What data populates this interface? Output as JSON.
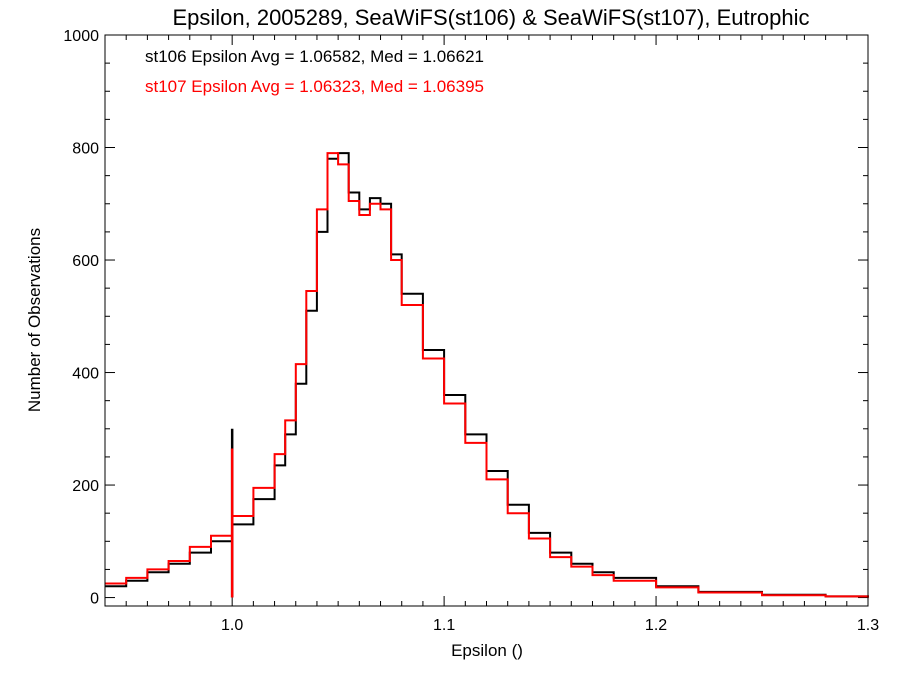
{
  "chart_data": {
    "type": "line",
    "title": "Epsilon, 2005289, SeaWiFS(st106) & SeaWiFS(st107), Eutrophic",
    "xlabel": "Epsilon ()",
    "ylabel": "Number of Observations",
    "xlim": [
      0.94,
      1.3
    ],
    "ylim": [
      -15,
      1000
    ],
    "x_ticks": [
      1.0,
      1.1,
      1.2,
      1.3
    ],
    "x_tick_labels": [
      "1.0",
      "1.1",
      "1.2",
      "1.3"
    ],
    "y_ticks": [
      0,
      200,
      400,
      600,
      800,
      1000
    ],
    "y_tick_labels": [
      "0",
      "200",
      "400",
      "600",
      "800",
      "1000"
    ],
    "x_minor_step": 0.01,
    "y_minor_step": 50,
    "grid": false,
    "step_plot": true,
    "annotations": [
      {
        "text": "st106 Epsilon Avg = 1.06582, Med = 1.06621",
        "color": "#000000"
      },
      {
        "text": "st107 Epsilon Avg = 1.06323, Med = 1.06395",
        "color": "#ff0000"
      }
    ],
    "x": [
      0.94,
      0.95,
      0.96,
      0.97,
      0.98,
      0.99,
      1.0,
      1.01,
      1.02,
      1.025,
      1.03,
      1.035,
      1.04,
      1.045,
      1.05,
      1.055,
      1.06,
      1.065,
      1.07,
      1.075,
      1.08,
      1.09,
      1.1,
      1.11,
      1.12,
      1.13,
      1.14,
      1.15,
      1.16,
      1.17,
      1.18,
      1.2,
      1.22,
      1.25,
      1.28,
      1.3
    ],
    "series": [
      {
        "name": "st106",
        "color": "#000000",
        "values": [
          20,
          30,
          45,
          60,
          80,
          100,
          130,
          175,
          235,
          290,
          380,
          510,
          650,
          780,
          790,
          720,
          690,
          710,
          700,
          610,
          540,
          440,
          360,
          290,
          225,
          165,
          115,
          80,
          60,
          45,
          35,
          20,
          10,
          5,
          2,
          0
        ],
        "spikes": [
          {
            "x": 1.0,
            "y": 300
          }
        ]
      },
      {
        "name": "st107",
        "color": "#ff0000",
        "values": [
          25,
          35,
          50,
          65,
          90,
          110,
          145,
          195,
          255,
          315,
          415,
          545,
          690,
          790,
          770,
          705,
          680,
          700,
          690,
          600,
          520,
          425,
          345,
          275,
          210,
          150,
          105,
          72,
          55,
          40,
          30,
          18,
          9,
          4,
          2,
          0
        ],
        "spikes": [
          {
            "x": 1.0,
            "y": 265
          }
        ]
      }
    ]
  }
}
